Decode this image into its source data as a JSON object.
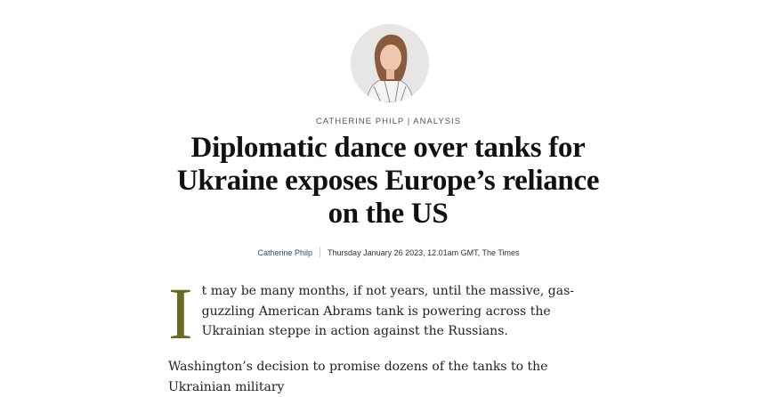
{
  "article": {
    "kicker": "CATHERINE PHILP | ANALYSIS",
    "headline": "Diplomatic dance over tanks for Ukraine exposes Europe’s reliance on the US",
    "byline": {
      "author": "Catherine Philp",
      "dateline": "Thursday January 26 2023, 12.01am GMT, The Times"
    },
    "drop_cap": "I",
    "paragraphs": [
      "t may be many months, if not years, until the massive, gas-guzzling American Abrams tank is powering across the Ukrainian steppe in action against the Russians.",
      "Washington’s decision to promise dozens of the tanks to the Ukrainian military"
    ],
    "accent_color": "#6b6a22"
  }
}
